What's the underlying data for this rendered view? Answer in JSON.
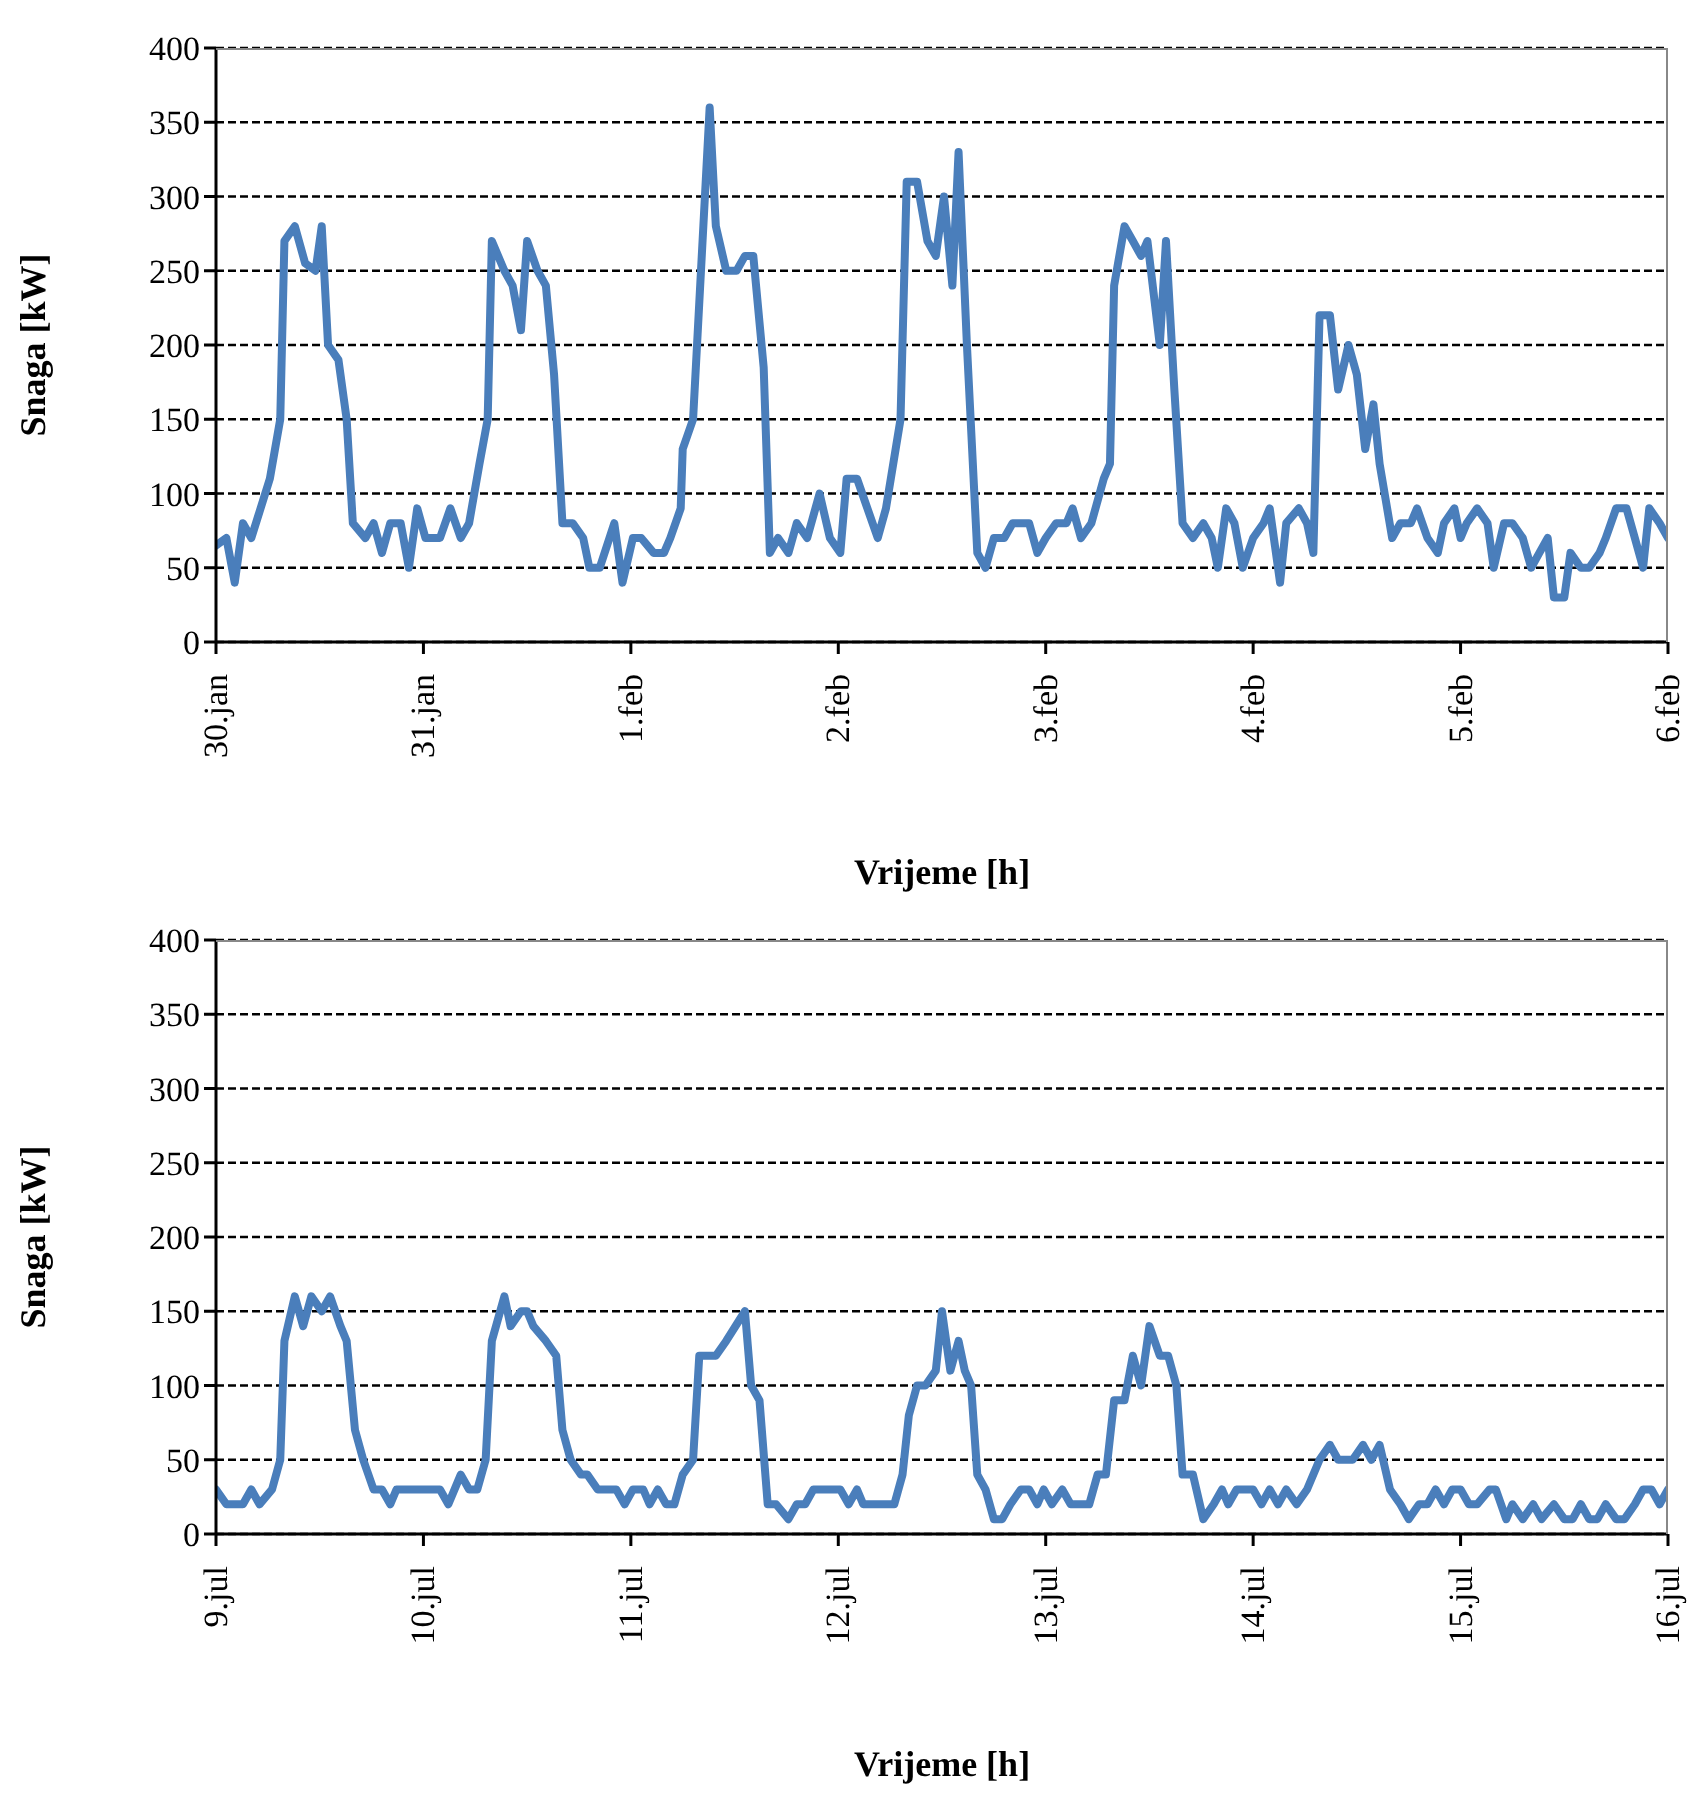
{
  "chart_data": [
    {
      "type": "line",
      "xlabel": "Vrijeme  [h]",
      "ylabel": "Snaga [kW]",
      "color": "#4a7ebb",
      "grid": "y",
      "xlim": [
        "--01-30",
        "--02-06"
      ],
      "ylim": [
        0,
        400
      ],
      "yticks": [
        0,
        50,
        100,
        150,
        200,
        250,
        300,
        350,
        400
      ],
      "xticks": [
        {
          "value": "--01-30",
          "label": "30.jan"
        },
        {
          "value": "--01-31",
          "label": "31.jan"
        },
        {
          "value": "--02-01",
          "label": "1.feb"
        },
        {
          "value": "--02-02",
          "label": "2.feb"
        },
        {
          "value": "--02-03",
          "label": "3.feb"
        },
        {
          "value": "--02-04",
          "label": "4.feb"
        },
        {
          "value": "--02-05",
          "label": "5.feb"
        },
        {
          "value": "--02-06",
          "label": "6.feb"
        }
      ],
      "x": [
        "--01-30T00:00",
        "--01-30T01:12",
        "--01-30T02:10",
        "--01-30T03:07",
        "--01-30T04:05",
        "--01-30T06:14",
        "--01-30T07:26",
        "--01-30T07:55",
        "--01-30T09:07",
        "--01-30T10:19",
        "--01-30T11:31",
        "--01-30T12:14",
        "--01-30T12:58",
        "--01-30T14:10",
        "--01-30T15:07",
        "--01-30T15:50",
        "--01-30T17:17",
        "--01-30T18:14",
        "--01-30T19:12",
        "--01-30T20:10",
        "--01-30T21:22",
        "--01-30T22:19",
        "--01-30T23:17",
        "--01-31T00:14",
        "--01-31T01:55",
        "--01-31T03:07",
        "--01-31T04:19",
        "--01-31T05:17",
        "--01-31T06:29",
        "--01-31T07:26",
        "--01-31T07:55",
        "--01-31T09:22",
        "--01-31T10:19",
        "--01-31T11:17",
        "--01-31T12:00",
        "--01-31T13:12",
        "--01-31T14:10",
        "--01-31T15:07",
        "--01-31T16:05",
        "--01-31T17:17",
        "--01-31T18:29",
        "--01-31T19:12",
        "--01-31T20:24",
        "--01-31T22:05",
        "--01-31T23:02",
        "--02-01T00:14",
        "--02-01T01:12",
        "--02-01T02:38",
        "--02-01T03:50",
        "--02-01T04:34",
        "--02-01T05:46",
        "--02-01T06:00",
        "--02-01T07:12",
        "--02-01T09:07",
        "--02-01T09:50",
        "--02-01T11:02",
        "--02-01T12:14",
        "--02-01T13:12",
        "--02-01T14:10",
        "--02-01T15:22",
        "--02-01T16:05",
        "--02-01T17:02",
        "--02-01T18:14",
        "--02-01T19:12",
        "--02-01T20:24",
        "--02-01T21:50",
        "--02-01T23:02",
        "--02-02T00:14",
        "--02-02T00:58",
        "--02-02T02:10",
        "--02-02T03:22",
        "--02-02T04:34",
        "--02-02T05:31",
        "--02-02T07:12",
        "--02-02T07:55",
        "--02-02T09:07",
        "--02-02T10:19",
        "--02-02T11:17",
        "--02-02T12:14",
        "--02-02T13:12",
        "--02-02T13:55",
        "--02-02T14:53",
        "--02-02T16:05",
        "--02-02T17:02",
        "--02-02T18:00",
        "--02-02T19:12",
        "--02-02T20:10",
        "--02-02T22:05",
        "--02-02T23:02",
        "--02-03T00:00",
        "--02-03T01:12",
        "--02-03T02:24",
        "--02-03T03:07",
        "--02-03T04:05",
        "--02-03T05:17",
        "--02-03T06:43",
        "--02-03T07:26",
        "--02-03T07:55",
        "--02-03T09:07",
        "--02-03T10:05",
        "--02-03T11:02",
        "--02-03T11:46",
        "--02-03T13:12",
        "--02-03T13:55",
        "--02-03T14:53",
        "--02-03T15:50",
        "--02-03T17:02",
        "--02-03T18:14",
        "--02-03T19:12",
        "--02-03T19:55",
        "--02-03T20:53",
        "--02-03T21:50",
        "--02-03T22:48",
        "--02-04T00:00",
        "--02-04T01:12",
        "--02-04T01:55",
        "--02-04T03:07",
        "--02-04T03:50",
        "--02-04T05:17",
        "--02-04T06:14",
        "--02-04T06:58",
        "--02-04T07:41",
        "--02-04T08:53",
        "--02-04T09:50",
        "--02-04T11:02",
        "--02-04T12:00",
        "--02-04T12:58",
        "--02-04T13:55",
        "--02-04T14:38",
        "--02-04T16:05",
        "--02-04T17:02",
        "--02-04T18:14",
        "--02-04T18:58",
        "--02-04T20:10",
        "--02-04T21:22",
        "--02-04T22:05",
        "--02-04T23:17",
        "--02-05T00:00",
        "--02-05T00:43",
        "--02-05T01:55",
        "--02-05T03:07",
        "--02-05T03:50",
        "--02-05T05:02",
        "--02-05T06:00",
        "--02-05T07:12",
        "--02-05T08:10",
        "--02-05T09:07",
        "--02-05T10:05",
        "--02-05T10:48",
        "--02-05T12:00",
        "--02-05T12:43",
        "--02-05T13:55",
        "--02-05T14:53",
        "--02-05T16:05",
        "--02-05T16:48",
        "--02-05T18:00",
        "--02-05T19:12",
        "--02-05T20:10",
        "--02-05T21:07",
        "--02-05T21:50",
        "--02-05T23:02",
        "--02-06T00:00"
      ],
      "values": [
        65,
        70,
        40,
        80,
        70,
        110,
        150,
        270,
        280,
        255,
        250,
        280,
        200,
        190,
        150,
        80,
        70,
        80,
        60,
        80,
        80,
        50,
        90,
        70,
        70,
        90,
        70,
        80,
        120,
        150,
        270,
        250,
        240,
        210,
        270,
        250,
        240,
        180,
        80,
        80,
        70,
        50,
        50,
        80,
        40,
        70,
        70,
        60,
        60,
        70,
        90,
        130,
        150,
        360,
        280,
        250,
        250,
        260,
        260,
        185,
        60,
        70,
        60,
        80,
        70,
        100,
        70,
        60,
        110,
        110,
        90,
        70,
        90,
        150,
        310,
        310,
        270,
        260,
        300,
        240,
        330,
        200,
        60,
        50,
        70,
        70,
        80,
        80,
        60,
        70,
        80,
        80,
        90,
        70,
        80,
        110,
        120,
        240,
        280,
        270,
        260,
        270,
        200,
        270,
        170,
        80,
        70,
        80,
        70,
        50,
        90,
        80,
        50,
        70,
        80,
        90,
        40,
        80,
        90,
        80,
        60,
        220,
        220,
        170,
        200,
        180,
        130,
        160,
        120,
        70,
        80,
        80,
        90,
        70,
        60,
        80,
        90,
        70,
        80,
        90,
        80,
        50,
        80,
        80,
        70,
        50,
        60,
        70,
        30,
        30,
        60,
        50,
        50,
        60,
        70,
        90,
        90,
        70,
        50,
        90,
        80,
        70
      ]
    },
    {
      "type": "line",
      "xlabel": "Vrijeme  [h]",
      "ylabel": "Snaga [kW]",
      "color": "#4a7ebb",
      "grid": "y",
      "xlim": [
        "--07-09",
        "--07-16"
      ],
      "ylim": [
        0,
        400
      ],
      "yticks": [
        0,
        50,
        100,
        150,
        200,
        250,
        300,
        350,
        400
      ],
      "xticks": [
        {
          "value": "--07-09",
          "label": "9.jul"
        },
        {
          "value": "--07-10",
          "label": "10.jul"
        },
        {
          "value": "--07-11",
          "label": "11.jul"
        },
        {
          "value": "--07-12",
          "label": "12.jul"
        },
        {
          "value": "--07-13",
          "label": "13.jul"
        },
        {
          "value": "--07-14",
          "label": "14.jul"
        },
        {
          "value": "--07-15",
          "label": "15.jul"
        },
        {
          "value": "--07-16",
          "label": "16.jul"
        }
      ],
      "x": [
        "--07-09T00:00",
        "--07-09T01:12",
        "--07-09T03:07",
        "--07-09T04:05",
        "--07-09T05:02",
        "--07-09T06:29",
        "--07-09T07:26",
        "--07-09T07:55",
        "--07-09T09:07",
        "--07-09T10:05",
        "--07-09T11:02",
        "--07-09T12:14",
        "--07-09T13:12",
        "--07-09T14:24",
        "--07-09T15:07",
        "--07-09T16:05",
        "--07-09T17:02",
        "--07-09T18:14",
        "--07-09T19:12",
        "--07-09T20:10",
        "--07-09T20:53",
        "--07-10T01:55",
        "--07-10T02:53",
        "--07-10T04:19",
        "--07-10T05:17",
        "--07-10T06:14",
        "--07-10T07:12",
        "--07-10T07:55",
        "--07-10T09:22",
        "--07-10T10:05",
        "--07-10T11:17",
        "--07-10T12:00",
        "--07-10T12:43",
        "--07-10T14:10",
        "--07-10T15:22",
        "--07-10T16:05",
        "--07-10T17:02",
        "--07-10T18:14",
        "--07-10T18:58",
        "--07-10T20:10",
        "--07-10T22:19",
        "--07-10T23:17",
        "--07-11T00:14",
        "--07-11T01:26",
        "--07-11T02:10",
        "--07-11T03:07",
        "--07-11T04:05",
        "--07-11T05:02",
        "--07-11T06:00",
        "--07-11T07:12",
        "--07-11T07:55",
        "--07-11T09:50",
        "--07-11T11:02",
        "--07-11T13:12",
        "--07-11T13:55",
        "--07-11T14:53",
        "--07-11T15:50",
        "--07-11T16:48",
        "--07-11T18:14",
        "--07-11T19:12",
        "--07-11T20:10",
        "--07-11T21:07",
        "--07-12T00:14",
        "--07-12T01:12",
        "--07-12T02:10",
        "--07-12T02:53",
        "--07-12T06:29",
        "--07-12T07:26",
        "--07-12T08:10",
        "--07-12T09:07",
        "--07-12T10:05",
        "--07-12T11:17",
        "--07-12T12:00",
        "--07-12T12:58",
        "--07-12T13:55",
        "--07-12T14:38",
        "--07-12T15:22",
        "--07-12T16:05",
        "--07-12T17:02",
        "--07-12T18:00",
        "--07-12T18:58",
        "--07-12T19:55",
        "--07-12T21:07",
        "--07-12T22:05",
        "--07-12T23:02",
        "--07-12T23:46",
        "--07-13T00:43",
        "--07-13T01:55",
        "--07-13T02:53",
        "--07-13T05:02",
        "--07-13T06:00",
        "--07-13T06:58",
        "--07-13T07:55",
        "--07-13T09:07",
        "--07-13T10:05",
        "--07-13T11:02",
        "--07-13T12:00",
        "--07-13T13:12",
        "--07-13T14:10",
        "--07-13T15:07",
        "--07-13T15:50",
        "--07-13T17:02",
        "--07-13T18:14",
        "--07-13T19:26",
        "--07-13T20:24",
        "--07-13T21:07",
        "--07-13T22:05",
        "--07-14T00:00",
        "--07-14T00:58",
        "--07-14T01:55",
        "--07-14T02:53",
        "--07-14T03:50",
        "--07-14T05:02",
        "--07-14T06:14",
        "--07-14T07:41",
        "--07-14T08:53",
        "--07-14T09:50",
        "--07-14T11:31",
        "--07-14T12:43",
        "--07-14T13:41",
        "--07-14T14:38",
        "--07-14T15:50",
        "--07-14T17:02",
        "--07-14T18:00",
        "--07-14T19:12",
        "--07-14T20:10",
        "--07-14T21:07",
        "--07-14T22:05",
        "--07-14T23:02",
        "--07-15T00:00",
        "--07-15T00:58",
        "--07-15T01:55",
        "--07-15T03:22",
        "--07-15T04:05",
        "--07-15T05:17",
        "--07-15T06:00",
        "--07-15T07:12",
        "--07-15T08:24",
        "--07-15T09:22",
        "--07-15T10:48",
        "--07-15T12:00",
        "--07-15T12:58",
        "--07-15T13:55",
        "--07-15T14:53",
        "--07-15T15:50",
        "--07-15T16:48",
        "--07-15T18:00",
        "--07-15T18:58",
        "--07-15T20:10",
        "--07-15T21:07",
        "--07-15T22:05",
        "--07-15T23:02",
        "--07-16T00:00"
      ],
      "values": [
        30,
        20,
        20,
        30,
        20,
        30,
        50,
        130,
        160,
        140,
        160,
        150,
        160,
        140,
        130,
        70,
        50,
        30,
        30,
        20,
        30,
        30,
        20,
        40,
        30,
        30,
        50,
        130,
        160,
        140,
        150,
        150,
        140,
        130,
        120,
        70,
        50,
        40,
        40,
        30,
        30,
        20,
        30,
        30,
        20,
        30,
        20,
        20,
        40,
        50,
        120,
        120,
        130,
        150,
        100,
        90,
        20,
        20,
        10,
        20,
        20,
        30,
        30,
        20,
        30,
        20,
        20,
        40,
        80,
        100,
        100,
        110,
        150,
        110,
        130,
        110,
        100,
        40,
        30,
        10,
        10,
        20,
        30,
        30,
        20,
        30,
        20,
        30,
        20,
        20,
        40,
        40,
        90,
        90,
        120,
        100,
        140,
        120,
        120,
        100,
        40,
        40,
        10,
        20,
        30,
        20,
        30,
        30,
        20,
        30,
        20,
        30,
        20,
        30,
        50,
        60,
        50,
        50,
        60,
        50,
        60,
        30,
        20,
        10,
        20,
        20,
        30,
        20,
        30,
        30,
        20,
        20,
        30,
        30,
        10,
        20,
        10,
        20,
        10,
        20,
        10,
        10,
        20,
        10,
        10,
        20,
        10,
        10,
        20,
        30,
        30,
        20,
        30
      ]
    }
  ]
}
